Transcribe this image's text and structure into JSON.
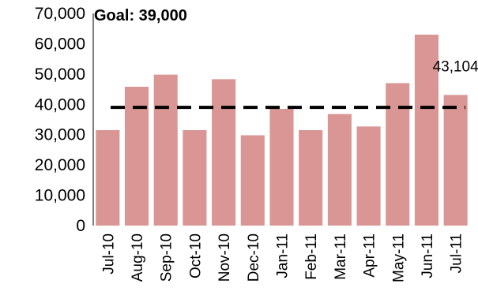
{
  "chart_data": {
    "type": "bar",
    "categories": [
      "Jul-10",
      "Aug-10",
      "Sep-10",
      "Oct-10",
      "Nov-10",
      "Dec-10",
      "Jan-11",
      "Feb-11",
      "Mar-11",
      "Apr-11",
      "May-11",
      "Jun-11",
      "Jul-11"
    ],
    "values": [
      31500,
      45800,
      49800,
      31500,
      48300,
      29800,
      38500,
      31500,
      36800,
      32700,
      47000,
      63000,
      43104
    ],
    "ylim": [
      0,
      70000
    ],
    "yticks": [
      "0",
      "10,000",
      "20,000",
      "30,000",
      "40,000",
      "50,000",
      "60,000",
      "70,000"
    ],
    "ytick_values": [
      0,
      10000,
      20000,
      30000,
      40000,
      50000,
      60000,
      70000
    ],
    "goal": {
      "label": "Goal: 39,000",
      "value": 39000
    },
    "data_label": {
      "index": 12,
      "text": "43,104"
    },
    "bar_color": "#d99694",
    "goal_line_color": "#000000",
    "grid": false,
    "legend": "none"
  }
}
